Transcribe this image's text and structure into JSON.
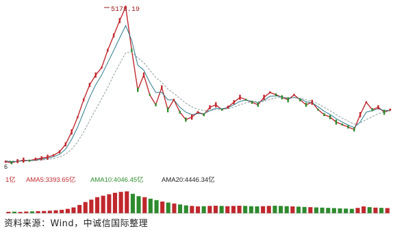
{
  "chart_data": {
    "type": "line",
    "panels": [
      "price",
      "volume"
    ],
    "price": {
      "peak_label": "5178.19",
      "axis_min_label": "6",
      "series": [
        {
          "key": "close",
          "color": "#c0282d",
          "values": [
            2050,
            2030,
            2060,
            2080,
            2070,
            2100,
            2120,
            2140,
            2180,
            2250,
            2400,
            2650,
            2950,
            3300,
            3600,
            3800,
            3950,
            4300,
            4600,
            4900,
            5178,
            4300,
            3500,
            3800,
            3400,
            3200,
            3550,
            3100,
            3300,
            3050,
            2900,
            2950,
            3050,
            3000,
            3150,
            3200,
            3100,
            3150,
            3250,
            3350,
            3300,
            3250,
            3200,
            3350,
            3450,
            3400,
            3350,
            3300,
            3400,
            3300,
            3200,
            3250,
            3100,
            3000,
            2950,
            2850,
            2800,
            2750,
            2700,
            3000,
            3250,
            3100,
            3150,
            3050,
            3100
          ]
        },
        {
          "key": "ma_fast",
          "color": "#2a7a8c",
          "values": [
            2060,
            2050,
            2055,
            2065,
            2070,
            2080,
            2100,
            2120,
            2150,
            2200,
            2300,
            2500,
            2750,
            3050,
            3350,
            3600,
            3800,
            4050,
            4300,
            4550,
            4800,
            4500,
            4000,
            3900,
            3650,
            3450,
            3450,
            3300,
            3300,
            3150,
            3050,
            3000,
            3020,
            3020,
            3080,
            3130,
            3120,
            3140,
            3200,
            3270,
            3290,
            3270,
            3240,
            3290,
            3370,
            3380,
            3360,
            3320,
            3350,
            3320,
            3260,
            3240,
            3160,
            3070,
            3000,
            2920,
            2850,
            2790,
            2740,
            2850,
            3050,
            3080,
            3120,
            3080,
            3090
          ]
        },
        {
          "key": "ma_slow",
          "color": "#8a9a9a",
          "values": [
            2070,
            2065,
            2062,
            2063,
            2066,
            2072,
            2082,
            2095,
            2115,
            2145,
            2200,
            2300,
            2450,
            2650,
            2880,
            3100,
            3320,
            3550,
            3800,
            4030,
            4250,
            4260,
            4150,
            4050,
            3900,
            3750,
            3650,
            3520,
            3430,
            3330,
            3230,
            3160,
            3110,
            3080,
            3080,
            3100,
            3110,
            3120,
            3150,
            3200,
            3240,
            3260,
            3260,
            3270,
            3310,
            3340,
            3350,
            3340,
            3340,
            3330,
            3300,
            3270,
            3220,
            3150,
            3080,
            3000,
            2930,
            2870,
            2810,
            2830,
            2900,
            2960,
            3020,
            3050,
            3070
          ]
        }
      ]
    },
    "volume": {
      "legend": [
        "1亿",
        "AMA5:3393.65亿",
        "AMA10:4046.45亿",
        "AMA20:4446.34亿"
      ],
      "legend_colors": [
        "#c0282d",
        "#c0282d",
        "#2e8b2e",
        "#222222"
      ],
      "values": [
        300,
        320,
        280,
        350,
        380,
        420,
        460,
        520,
        600,
        700,
        900,
        1200,
        1700,
        2300,
        2800,
        3300,
        3600,
        3900,
        4200,
        4400,
        4500,
        4000,
        3500,
        3300,
        3000,
        2700,
        2400,
        2200,
        2000,
        1800,
        1600,
        1500,
        1400,
        1450,
        1500,
        1550,
        1500,
        1450,
        1500,
        1550,
        1500,
        1450,
        1400,
        1450,
        1500,
        1550,
        1500,
        1450,
        1400,
        1350,
        1300,
        1250,
        1200,
        1150,
        1100,
        1050,
        1000,
        950,
        900,
        1100,
        1400,
        1250,
        1150,
        1100,
        1050
      ]
    }
  },
  "source_text": "资料来源：Wind，中诚信国际整理"
}
